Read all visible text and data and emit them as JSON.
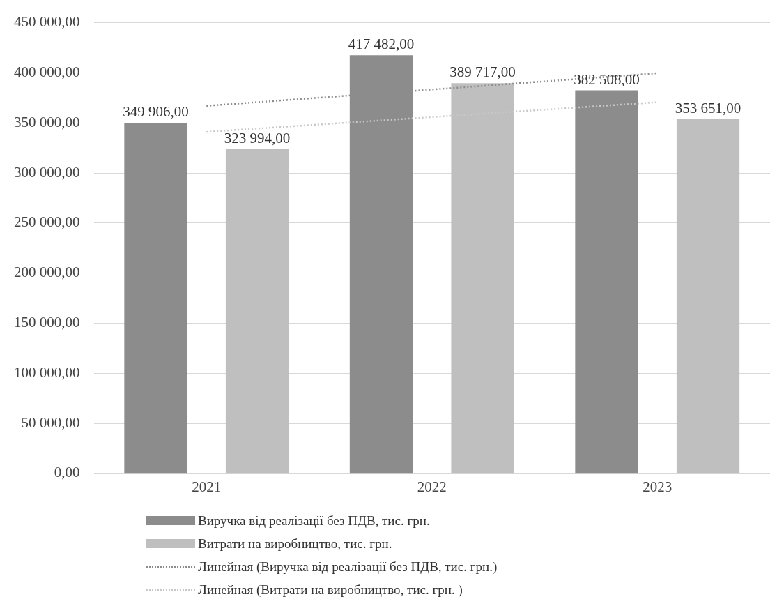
{
  "chart_data": {
    "type": "bar",
    "categories": [
      "2021",
      "2022",
      "2023"
    ],
    "series": [
      {
        "name": "Виручка від реалізації без ПДВ, тис. грн.",
        "color": "#8c8c8c",
        "values": [
          349906,
          417482,
          382508
        ],
        "value_labels": [
          "349 906,00",
          "417 482,00",
          "382 508,00"
        ]
      },
      {
        "name": "Витрати на виробництво, тис. грн.",
        "color": "#bfbfbf",
        "values": [
          323994,
          389717,
          353651
        ],
        "value_labels": [
          "323 994,00",
          "389 717,00",
          "353 651,00"
        ]
      },
      {
        "name": "Линейная (Виручка від реалізації без ПДВ, тис. грн.)",
        "type": "line",
        "color": "#8c8c8c",
        "line_style": "dotted",
        "marker": "none",
        "values": [
          367000,
          383300,
          399600
        ]
      },
      {
        "name": "Линейная (Витрати на виробництво, тис. грн. )",
        "type": "line",
        "color": "#c8c8c8",
        "line_style": "dotted",
        "marker": "none",
        "values": [
          341000,
          355800,
          370600
        ]
      }
    ],
    "ylim": [
      0,
      450000
    ],
    "yticks": [
      {
        "value": 0,
        "label": "0,00"
      },
      {
        "value": 50000,
        "label": "50 000,00"
      },
      {
        "value": 100000,
        "label": "100 000,00"
      },
      {
        "value": 150000,
        "label": "150 000,00"
      },
      {
        "value": 200000,
        "label": "200 000,00"
      },
      {
        "value": 250000,
        "label": "250 000,00"
      },
      {
        "value": 300000,
        "label": "300 000,00"
      },
      {
        "value": 350000,
        "label": "350 000,00"
      },
      {
        "value": 400000,
        "label": "400 000,00"
      },
      {
        "value": 450000,
        "label": "450 000,00"
      }
    ],
    "grid": "y",
    "legend": "bottom"
  }
}
